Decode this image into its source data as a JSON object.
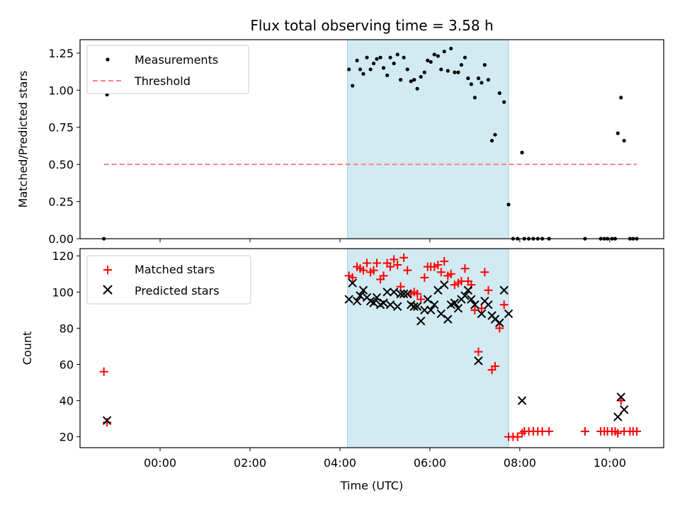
{
  "chart_data": {
    "type": "scatter",
    "title": "Flux total observing time = 3.58 h",
    "xlabel": "Time (UTC)",
    "x_unit": "hours relative to 00:00 UTC",
    "xlim": [
      -1.78,
      11.2
    ],
    "xticks": [
      0,
      2,
      4,
      6,
      8,
      10
    ],
    "xtick_labels": [
      "00:00",
      "02:00",
      "04:00",
      "06:00",
      "08:00",
      "10:00"
    ],
    "observing_window": [
      4.17,
      7.75
    ],
    "window_color": "#add8e6",
    "top": {
      "ylabel": "Matched/Predicted stars",
      "ylim": [
        0,
        1.34
      ],
      "yticks": [
        0,
        0.25,
        0.5,
        0.75,
        1.0,
        1.25
      ],
      "ytick_labels": [
        "0.00",
        "0.25",
        "0.50",
        "0.75",
        "1.00",
        "1.25"
      ],
      "legend": [
        "Measurements",
        "Threshold"
      ],
      "threshold": {
        "value": 0.5,
        "x_range": [
          -1.25,
          10.6
        ],
        "color": "#ff7f7f"
      },
      "measurements": {
        "color": "#000000",
        "points": [
          [
            -1.25,
            0.0
          ],
          [
            -1.18,
            0.97
          ],
          [
            4.2,
            1.14
          ],
          [
            4.28,
            1.03
          ],
          [
            4.38,
            1.2
          ],
          [
            4.45,
            1.14
          ],
          [
            4.52,
            1.11
          ],
          [
            4.6,
            1.22
          ],
          [
            4.68,
            1.14
          ],
          [
            4.75,
            1.18
          ],
          [
            4.82,
            1.21
          ],
          [
            4.9,
            1.22
          ],
          [
            4.97,
            1.15
          ],
          [
            5.05,
            1.1
          ],
          [
            5.12,
            1.22
          ],
          [
            5.2,
            1.18
          ],
          [
            5.28,
            1.24
          ],
          [
            5.35,
            1.07
          ],
          [
            5.42,
            1.22
          ],
          [
            5.5,
            1.14
          ],
          [
            5.58,
            1.06
          ],
          [
            5.65,
            1.07
          ],
          [
            5.72,
            1.01
          ],
          [
            5.8,
            1.09
          ],
          [
            5.88,
            1.12
          ],
          [
            5.95,
            1.2
          ],
          [
            6.02,
            1.19
          ],
          [
            6.1,
            1.24
          ],
          [
            6.18,
            1.23
          ],
          [
            6.25,
            1.14
          ],
          [
            6.32,
            1.26
          ],
          [
            6.4,
            1.13
          ],
          [
            6.47,
            1.28
          ],
          [
            6.55,
            1.12
          ],
          [
            6.63,
            1.12
          ],
          [
            6.7,
            1.17
          ],
          [
            6.78,
            1.22
          ],
          [
            6.85,
            1.08
          ],
          [
            6.92,
            1.04
          ],
          [
            7.0,
            0.95
          ],
          [
            7.08,
            1.08
          ],
          [
            7.15,
            1.05
          ],
          [
            7.22,
            1.17
          ],
          [
            7.3,
            1.07
          ],
          [
            7.38,
            0.66
          ],
          [
            7.45,
            0.7
          ],
          [
            7.55,
            0.98
          ],
          [
            7.65,
            0.92
          ],
          [
            7.75,
            0.23
          ],
          [
            7.85,
            0.0
          ],
          [
            7.95,
            0.0
          ],
          [
            8.05,
            0.58
          ],
          [
            8.1,
            0.0
          ],
          [
            8.2,
            0.0
          ],
          [
            8.3,
            0.0
          ],
          [
            8.4,
            0.0
          ],
          [
            8.5,
            0.0
          ],
          [
            8.65,
            0.0
          ],
          [
            9.45,
            0.0
          ],
          [
            9.8,
            0.0
          ],
          [
            9.88,
            0.0
          ],
          [
            9.95,
            0.0
          ],
          [
            10.05,
            0.0
          ],
          [
            10.12,
            0.0
          ],
          [
            10.18,
            0.71
          ],
          [
            10.25,
            0.95
          ],
          [
            10.32,
            0.66
          ],
          [
            10.45,
            0.0
          ],
          [
            10.52,
            0.0
          ],
          [
            10.6,
            0.0
          ]
        ]
      }
    },
    "bottom": {
      "ylabel": "Count",
      "ylim": [
        14,
        124
      ],
      "yticks": [
        20,
        40,
        60,
        80,
        100,
        120
      ],
      "ytick_labels": [
        "20",
        "40",
        "60",
        "80",
        "100",
        "120"
      ],
      "legend": [
        "Matched stars",
        "Predicted stars"
      ],
      "series": [
        {
          "name": "Matched stars",
          "marker": "plus",
          "color": "#ff0000",
          "points": [
            [
              -1.25,
              56
            ],
            [
              -1.18,
              28
            ],
            [
              4.2,
              109
            ],
            [
              4.28,
              108
            ],
            [
              4.38,
              114
            ],
            [
              4.45,
              113
            ],
            [
              4.52,
              112
            ],
            [
              4.6,
              116
            ],
            [
              4.68,
              111
            ],
            [
              4.75,
              112
            ],
            [
              4.82,
              116
            ],
            [
              4.9,
              107
            ],
            [
              4.97,
              109
            ],
            [
              5.05,
              116
            ],
            [
              5.12,
              114
            ],
            [
              5.2,
              118
            ],
            [
              5.28,
              115
            ],
            [
              5.35,
              103
            ],
            [
              5.42,
              119
            ],
            [
              5.5,
              112
            ],
            [
              5.58,
              99
            ],
            [
              5.65,
              100
            ],
            [
              5.72,
              99
            ],
            [
              5.8,
              96
            ],
            [
              5.88,
              108
            ],
            [
              5.95,
              114
            ],
            [
              6.02,
              114
            ],
            [
              6.1,
              114
            ],
            [
              6.18,
              115
            ],
            [
              6.25,
              111
            ],
            [
              6.32,
              117
            ],
            [
              6.4,
              109
            ],
            [
              6.47,
              110
            ],
            [
              6.55,
              104
            ],
            [
              6.63,
              105
            ],
            [
              6.7,
              106
            ],
            [
              6.78,
              113
            ],
            [
              6.85,
              106
            ],
            [
              6.92,
              104
            ],
            [
              7.0,
              90
            ],
            [
              7.08,
              67
            ],
            [
              7.15,
              91
            ],
            [
              7.22,
              111
            ],
            [
              7.3,
              101
            ],
            [
              7.38,
              57
            ],
            [
              7.45,
              59
            ],
            [
              7.55,
              80
            ],
            [
              7.65,
              93
            ],
            [
              7.75,
              20
            ],
            [
              7.85,
              20
            ],
            [
              7.95,
              20
            ],
            [
              8.05,
              22
            ],
            [
              8.1,
              23
            ],
            [
              8.2,
              23
            ],
            [
              8.3,
              23
            ],
            [
              8.4,
              23
            ],
            [
              8.5,
              23
            ],
            [
              8.65,
              23
            ],
            [
              9.45,
              23
            ],
            [
              9.8,
              23
            ],
            [
              9.88,
              23
            ],
            [
              9.95,
              23
            ],
            [
              10.05,
              23
            ],
            [
              10.12,
              23
            ],
            [
              10.18,
              22
            ],
            [
              10.25,
              40
            ],
            [
              10.32,
              23
            ],
            [
              10.45,
              23
            ],
            [
              10.52,
              23
            ],
            [
              10.6,
              23
            ]
          ]
        },
        {
          "name": "Predicted stars",
          "marker": "x",
          "color": "#000000",
          "points": [
            [
              -1.18,
              29
            ],
            [
              4.2,
              96
            ],
            [
              4.28,
              105
            ],
            [
              4.38,
              95
            ],
            [
              4.45,
              98
            ],
            [
              4.52,
              101
            ],
            [
              4.6,
              97
            ],
            [
              4.68,
              95
            ],
            [
              4.75,
              94
            ],
            [
              4.82,
              97
            ],
            [
              4.9,
              93
            ],
            [
              4.97,
              94
            ],
            [
              5.05,
              100
            ],
            [
              5.12,
              93
            ],
            [
              5.2,
              100
            ],
            [
              5.28,
              92
            ],
            [
              5.35,
              99
            ],
            [
              5.42,
              99
            ],
            [
              5.5,
              99
            ],
            [
              5.58,
              93
            ],
            [
              5.65,
              92
            ],
            [
              5.72,
              92
            ],
            [
              5.8,
              84
            ],
            [
              5.88,
              90
            ],
            [
              5.95,
              96
            ],
            [
              6.02,
              90
            ],
            [
              6.1,
              93
            ],
            [
              6.18,
              101
            ],
            [
              6.25,
              88
            ],
            [
              6.32,
              104
            ],
            [
              6.4,
              85
            ],
            [
              6.47,
              93
            ],
            [
              6.55,
              94
            ],
            [
              6.63,
              91
            ],
            [
              6.7,
              96
            ],
            [
              6.78,
              98
            ],
            [
              6.85,
              101
            ],
            [
              6.92,
              96
            ],
            [
              7.0,
              93
            ],
            [
              7.08,
              62
            ],
            [
              7.15,
              88
            ],
            [
              7.22,
              95
            ],
            [
              7.3,
              93
            ],
            [
              7.38,
              87
            ],
            [
              7.45,
              85
            ],
            [
              7.55,
              83
            ],
            [
              7.65,
              101
            ],
            [
              7.75,
              88
            ],
            [
              8.05,
              40
            ],
            [
              10.18,
              31
            ],
            [
              10.25,
              42
            ],
            [
              10.32,
              35
            ]
          ]
        }
      ]
    }
  }
}
